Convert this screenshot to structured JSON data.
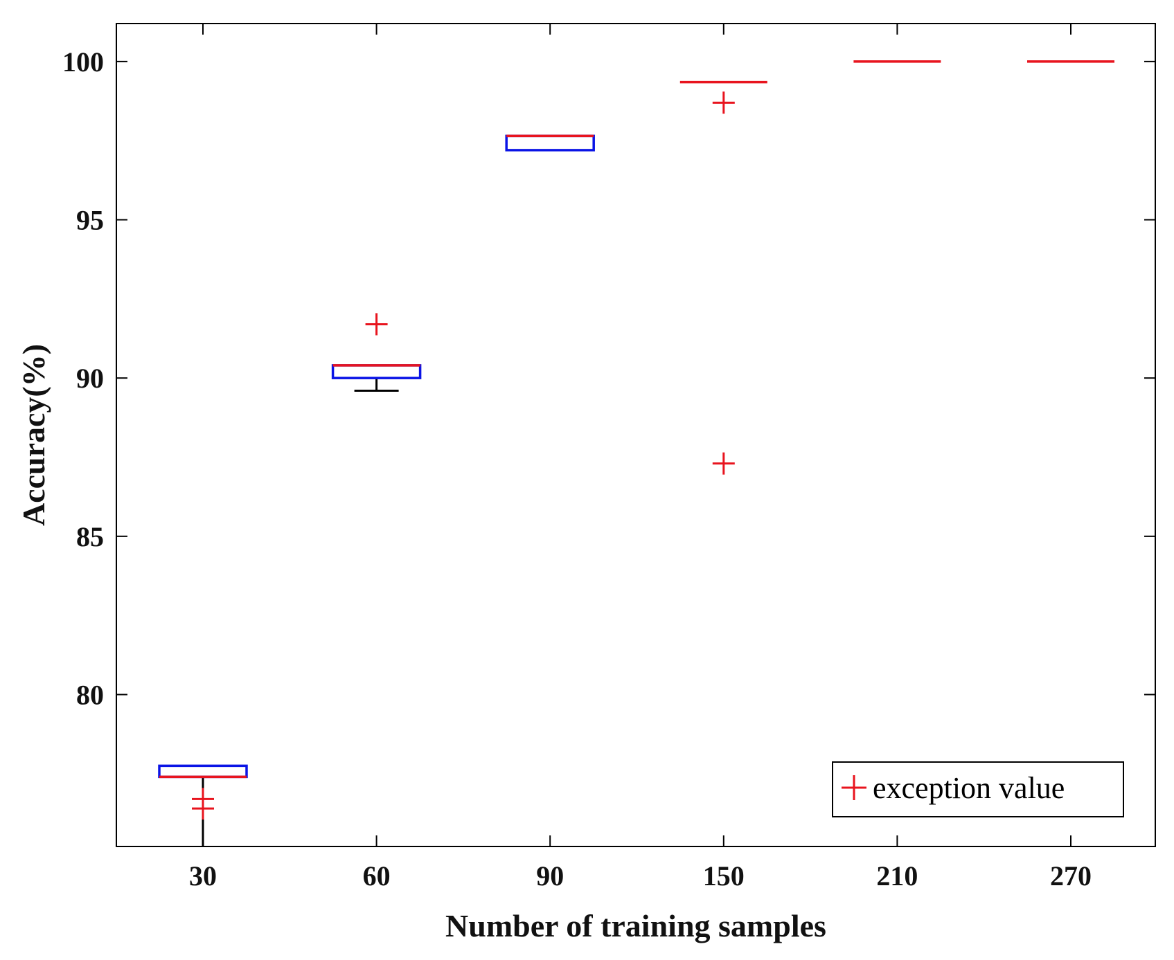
{
  "chart_data": {
    "type": "boxplot",
    "title": "",
    "xlabel": "Number of training samples",
    "ylabel": "Accuracy(%)",
    "categories": [
      "30",
      "60",
      "90",
      "150",
      "210",
      "270"
    ],
    "ylim": [
      75.2,
      101.2
    ],
    "yticks": [
      80,
      85,
      90,
      95,
      100
    ],
    "grid": false,
    "boxes": [
      {
        "category": "30",
        "whisker_low": 75.0,
        "q1": 77.4,
        "median": 77.4,
        "q3": 77.75,
        "whisker_high": 77.75,
        "outliers": [
          76.4,
          76.7
        ]
      },
      {
        "category": "60",
        "whisker_low": 89.6,
        "q1": 90.0,
        "median": 90.4,
        "q3": 90.4,
        "whisker_high": 90.4,
        "outliers": [
          91.7
        ]
      },
      {
        "category": "90",
        "whisker_low": 97.2,
        "q1": 97.2,
        "median": 97.65,
        "q3": 97.65,
        "whisker_high": 97.65,
        "outliers": []
      },
      {
        "category": "150",
        "whisker_low": 99.35,
        "q1": 99.35,
        "median": 99.35,
        "q3": 99.35,
        "whisker_high": 99.35,
        "outliers": [
          98.7,
          87.3
        ]
      },
      {
        "category": "210",
        "whisker_low": 100,
        "q1": 100,
        "median": 100,
        "q3": 100,
        "whisker_high": 100,
        "outliers": []
      },
      {
        "category": "270",
        "whisker_low": 100,
        "q1": 100,
        "median": 100,
        "q3": 100,
        "whisker_high": 100,
        "outliers": []
      }
    ],
    "legend": {
      "position": "bottom-right",
      "entries": [
        {
          "label": "exception value",
          "marker": "+"
        }
      ]
    },
    "colors": {
      "box": "#0a14e6",
      "median": "#e8141e",
      "whisker": "#000000",
      "outlier": "#e8141e",
      "axis": "#000000"
    }
  }
}
